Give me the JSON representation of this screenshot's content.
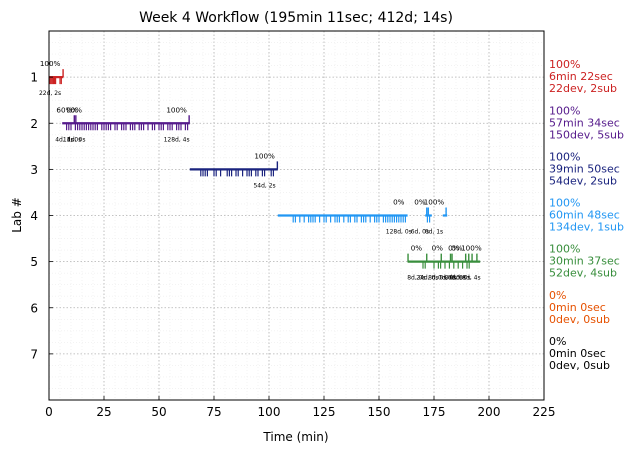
{
  "chart_data": {
    "type": "line",
    "title": "Week 4 Workflow (195min 11sec; 412d; 14s)",
    "xlabel": "Time (min)",
    "ylabel": "Lab #",
    "xlim": [
      0,
      225
    ],
    "ylim": [
      0,
      8
    ],
    "y_inverted": true,
    "x_ticks": [
      0,
      25,
      50,
      75,
      100,
      125,
      150,
      175,
      200,
      225
    ],
    "y_ticks": [
      1,
      2,
      3,
      4,
      5,
      6,
      7
    ],
    "grid": true,
    "labs": [
      {
        "lab": 1,
        "color": "#cc2222",
        "segments": [
          [
            0,
            6.5
          ]
        ],
        "commits": [
          0.5,
          1.0,
          1.5,
          2.0,
          2.5,
          3.0,
          5.0,
          5.6
        ],
        "submissions": [
          6.4
        ],
        "annotations": [
          {
            "x": 0.5,
            "pct": "100%",
            "bottom": "22d, 2s"
          }
        ],
        "side": [
          "100%",
          "6min 22sec",
          "22dev, 2sub"
        ]
      },
      {
        "lab": 2,
        "color": "#551a8b",
        "segments": [
          [
            6,
            64
          ]
        ],
        "commits": [
          8,
          9,
          10,
          12,
          13,
          14,
          15,
          16,
          17,
          18,
          19,
          20,
          21,
          22,
          24,
          25,
          26,
          27,
          28,
          30,
          31,
          33,
          34,
          35,
          37,
          38,
          39,
          41,
          42,
          43,
          45,
          47,
          48,
          50,
          51,
          52,
          54,
          55,
          56,
          58,
          59,
          60,
          62,
          63
        ],
        "submissions": [
          11.5,
          12.2,
          63.7
        ],
        "annotations": [
          {
            "x": 7,
            "pct": "60%",
            "bottom": "4d, 1s"
          },
          {
            "x": 10.5,
            "pct": "0%",
            "bottom": "1d, 0s"
          },
          {
            "x": 12.4,
            "pct": "0%",
            "bottom": "1d, 0s"
          },
          {
            "x": 58,
            "pct": "100%",
            "bottom": "128d, 4s"
          }
        ],
        "side": [
          "100%",
          "57min 34sec",
          "150dev, 5sub"
        ]
      },
      {
        "lab": 3,
        "color": "#1a237e",
        "segments": [
          [
            64,
            104
          ]
        ],
        "commits": [
          69,
          70,
          71,
          72,
          75,
          76,
          78,
          81,
          82,
          83,
          85,
          86,
          88,
          90,
          91,
          92,
          94,
          95,
          97,
          98,
          101,
          102
        ],
        "submissions": [
          103.8
        ],
        "annotations": [
          {
            "x": 98,
            "pct": "100%",
            "bottom": "54d, 2s"
          }
        ],
        "side": [
          "100%",
          "39min 50sec",
          "54dev, 2sub"
        ]
      },
      {
        "lab": 4,
        "color": "#2196f3",
        "segments": [
          [
            104,
            163
          ],
          [
            171,
            174
          ],
          [
            179,
            181
          ]
        ],
        "commits": [
          111,
          112,
          114,
          116,
          118,
          119,
          120,
          121,
          123,
          125,
          126,
          128,
          130,
          131,
          132,
          134,
          136,
          137,
          139,
          140,
          142,
          143,
          144,
          146,
          148,
          149,
          150,
          152,
          153,
          154,
          155,
          156,
          157,
          158,
          159,
          160,
          161,
          162,
          172,
          173
        ],
        "submissions": [
          171.7,
          172.4,
          180.5
        ],
        "annotations": [
          {
            "x": 159,
            "pct": "0%",
            "bottom": "128d, 0s"
          },
          {
            "x": 168.6,
            "pct": "0%",
            "bottom": "6d, 0s"
          },
          {
            "x": 175,
            "pct": "100%",
            "bottom": "0d, 1s"
          }
        ],
        "side": [
          "100%",
          "60min 48sec",
          "134dev, 1sub"
        ]
      },
      {
        "lab": 5,
        "color": "#388e3c",
        "segments": [
          [
            163,
            196
          ]
        ],
        "commits": [
          170,
          171,
          175,
          177,
          178,
          180,
          182,
          184,
          186,
          188,
          190,
          191
        ],
        "submissions": [
          163.2,
          171.7,
          178.3,
          182.5,
          183.2,
          189.4,
          190.8,
          192.3,
          194.5
        ],
        "annotations": [
          {
            "x": 167,
            "pct": "0%",
            "bottom": "8d, 0s"
          },
          {
            "x": 172,
            "pct": "",
            "bottom": "24d, 0s"
          },
          {
            "x": 176.5,
            "pct": "0%",
            "bottom": "8d, 0s"
          },
          {
            "x": 181,
            "pct": "",
            "bottom": "0d, 0s"
          },
          {
            "x": 184,
            "pct": "0%",
            "bottom": "8d, 0s"
          },
          {
            "x": 185.4,
            "pct": "0%",
            "bottom": "0d, 0s"
          },
          {
            "x": 187.5,
            "pct": "",
            "bottom": "8d, 0s"
          },
          {
            "x": 192,
            "pct": "100%",
            "bottom": "8d, 4s"
          }
        ],
        "side": [
          "100%",
          "30min 37sec",
          "52dev, 4sub"
        ]
      },
      {
        "lab": 6,
        "color": "#e65100",
        "segments": [],
        "commits": [],
        "submissions": [],
        "annotations": [],
        "side": [
          "0%",
          "0min 0sec",
          "0dev, 0sub"
        ]
      },
      {
        "lab": 7,
        "color": "#000000",
        "segments": [],
        "commits": [],
        "submissions": [],
        "annotations": [],
        "side": [
          "0%",
          "0min 0sec",
          "0dev, 0sub"
        ]
      }
    ]
  }
}
